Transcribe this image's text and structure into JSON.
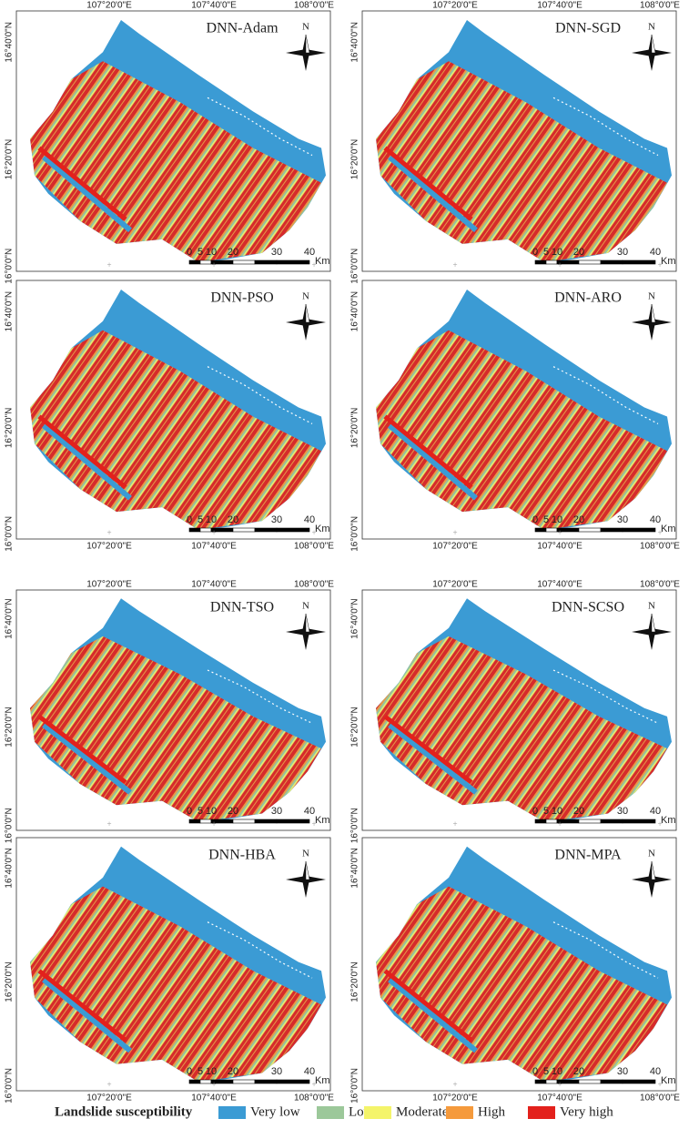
{
  "panels": [
    {
      "title": "DNN-Adam"
    },
    {
      "title": "DNN-SGD"
    },
    {
      "title": "DNN-PSO"
    },
    {
      "title": "DNN-ARO"
    },
    {
      "title": "DNN-TSO"
    },
    {
      "title": "DNN-SCSO"
    },
    {
      "title": "DNN-HBA"
    },
    {
      "title": "DNN-MPA"
    }
  ],
  "lon_labels": [
    "107°20'0\"E",
    "107°40'0\"E",
    "108°0'0\"E"
  ],
  "lat_labels": [
    "16°40'0\"N",
    "16°20'0\"N",
    "16°0'0\"N"
  ],
  "north": "N",
  "scale_labels": [
    "0",
    "5",
    "10",
    "20",
    "30",
    "40"
  ],
  "scale_unit": "Km",
  "legend": {
    "title": "Landslide susceptibility",
    "items": [
      {
        "label": "Very low",
        "color": "#3b9bd4"
      },
      {
        "label": "Low",
        "color": "#9cc89a"
      },
      {
        "label": "Moderate",
        "color": "#f4f46a"
      },
      {
        "label": "High",
        "color": "#f59a3c"
      },
      {
        "label": "Very high",
        "color": "#e3211c"
      }
    ]
  }
}
